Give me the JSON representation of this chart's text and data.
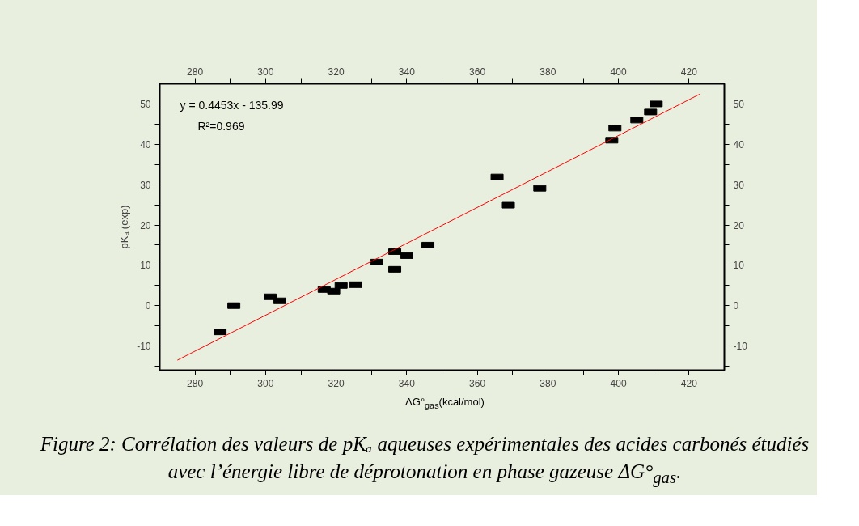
{
  "chart_data": {
    "type": "scatter",
    "xlabel": "ΔG°$_{gas}$(kcal/mol)",
    "ylabel": "pKₐ (exp)",
    "annotations": [
      "y = 0.4453x - 135.99",
      "R²=0.969",
      "Figure 2: Corrélation des valeurs de pKₐ aqueuses expérimentales  des acides carbonés étudiés avec l’énergie libre de déprotonation en phase gazeuse ΔG°$_{gas}$."
    ],
    "series": [
      {
        "color": "#000000",
        "marker": "square",
        "x": [
          287.1,
          291.0,
          301.3,
          304.0,
          316.6,
          319.3,
          321.4,
          325.5,
          331.5,
          336.6,
          336.6,
          340.0,
          346.0,
          365.6,
          368.8,
          377.7,
          398.1,
          399.0,
          405.2,
          409.1,
          410.7
        ],
        "values": [
          -6.5,
          0,
          2.2,
          1.2,
          4.0,
          3.6,
          5.0,
          5.2,
          10.8,
          9.0,
          13.4,
          12.4,
          15.0,
          31.9,
          24.9,
          29.1,
          41.0,
          44.0,
          46.0,
          48.0,
          50.0
        ]
      },
      {
        "type": "line",
        "color": "#ff0000",
        "marker": "none",
        "x": [
          275,
          423
        ],
        "values": [
          -13.5,
          52.4
        ]
      }
    ],
    "xlim": [
      270,
      430
    ],
    "ylim": [
      -16,
      55
    ],
    "x2lim": [
      270,
      430
    ],
    "y2lim": [
      -16,
      55
    ],
    "xticks": [
      280,
      {
        "value": 290,
        "label": null
      },
      300,
      {
        "value": 310,
        "label": null
      },
      320,
      {
        "value": 330,
        "label": null
      },
      340,
      {
        "value": 350,
        "label": null
      },
      360,
      {
        "value": 370,
        "label": null
      },
      380,
      {
        "value": 390,
        "label": null
      },
      400,
      {
        "value": 410,
        "label": null
      },
      420
    ],
    "x2ticks": [
      280,
      {
        "value": 290,
        "label": null
      },
      300,
      {
        "value": 310,
        "label": null
      },
      320,
      {
        "value": 330,
        "label": null
      },
      340,
      {
        "value": 350,
        "label": null
      },
      360,
      {
        "value": 370,
        "label": null
      },
      380,
      {
        "value": 390,
        "label": null
      },
      400,
      {
        "value": 410,
        "label": null
      },
      420
    ],
    "yticks": [
      {
        "value": -15,
        "label": null
      },
      -10,
      {
        "value": -5,
        "label": null
      },
      0,
      {
        "value": 5,
        "label": null
      },
      10,
      {
        "value": 15,
        "label": null
      },
      20,
      {
        "value": 25,
        "label": null
      },
      30,
      {
        "value": 35,
        "label": null
      },
      40,
      {
        "value": 45,
        "label": null
      },
      50
    ],
    "y2ticks": [
      {
        "value": -15,
        "label": null
      },
      -10,
      {
        "value": -5,
        "label": null
      },
      0,
      {
        "value": 5,
        "label": null
      },
      10,
      {
        "value": 15,
        "label": null
      },
      20,
      {
        "value": 25,
        "label": null
      },
      30,
      {
        "value": 35,
        "label": null
      },
      40,
      {
        "value": 45,
        "label": null
      },
      50
    ],
    "grid": false
  }
}
